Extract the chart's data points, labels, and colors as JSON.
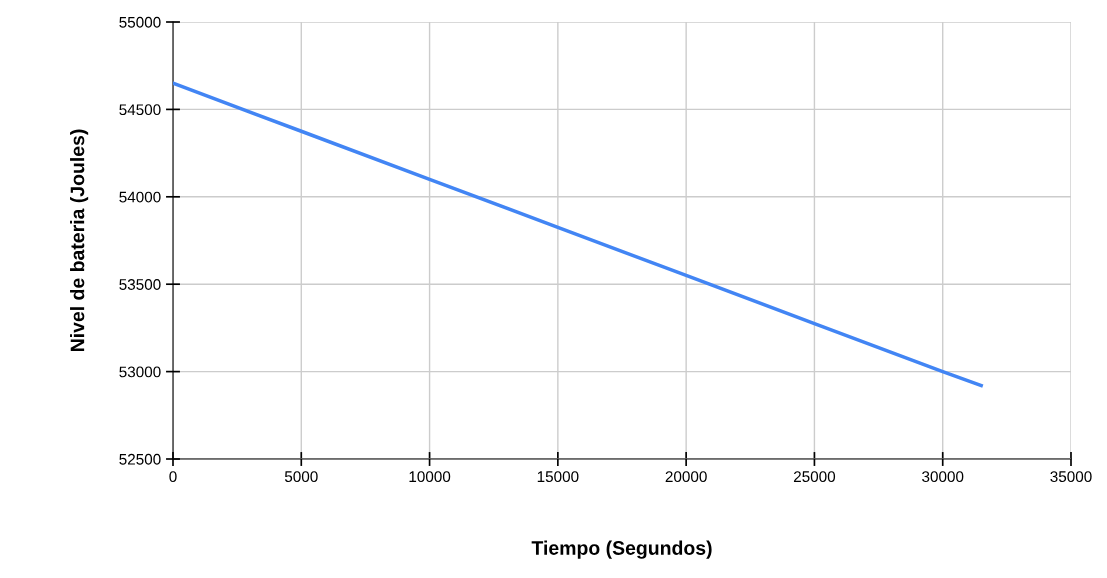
{
  "chart_data": {
    "type": "line",
    "xlabel": "Tiempo (Segundos)",
    "ylabel": "Nivel de bateria (Joules)",
    "series": [
      {
        "color": "#4285f4",
        "x": [
          0,
          5000,
          10000,
          15000,
          20000,
          25000,
          30000,
          31500
        ],
        "values": [
          54650,
          54375,
          54100,
          53825,
          53550,
          53275,
          53000,
          52920
        ]
      }
    ],
    "xlim": [
      0,
      35000
    ],
    "xticks": [
      0,
      5000,
      10000,
      15000,
      20000,
      25000,
      30000,
      35000
    ],
    "ylim": [
      52500,
      55000
    ],
    "yticks": [
      52500,
      53000,
      53500,
      54000,
      54500,
      55000
    ],
    "grid": true,
    "marker": "none",
    "line_style": "solid"
  }
}
